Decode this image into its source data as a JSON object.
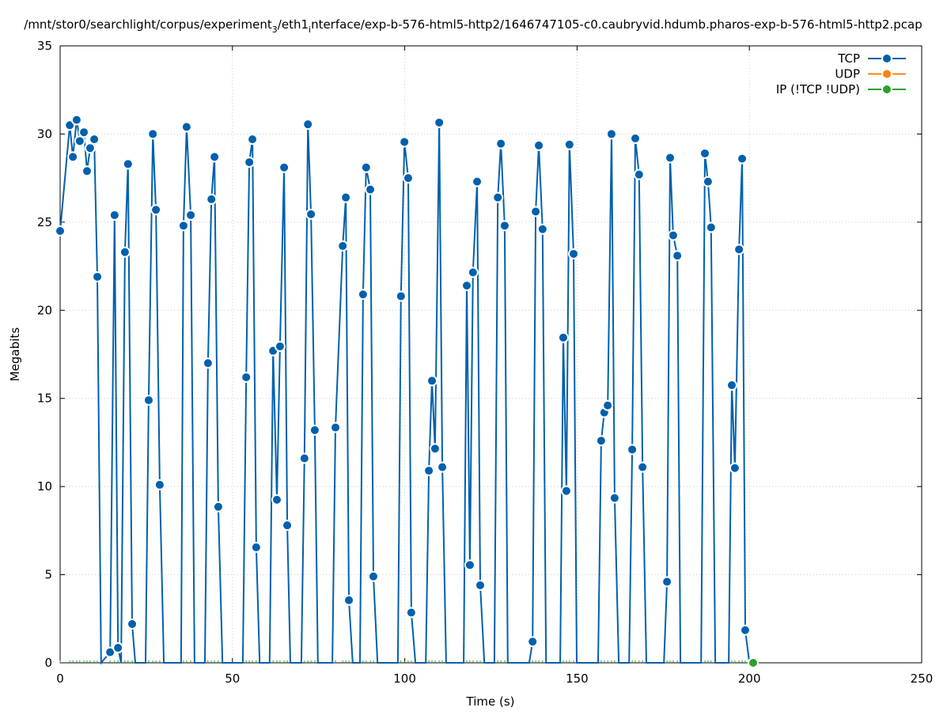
{
  "chart_data": {
    "type": "line",
    "title": "/mnt/stor0/searchlight/corpus/experiment_3/eth1_interface/exp-b-576-html5-http2/1646747105-c0.caubryvid.hdumb.pharos-exp-b-576-html5-http2.pcap",
    "title_main": "/mnt/stor0/searchlight/corpus/experiment",
    "title_sub1": "3",
    "title_mid": "/eth1",
    "title_sub2": "i",
    "title_end": "nterface/exp-b-576-html5-http2/1646747105-c0.caubryvid.hdumb.pharos-exp-b-576-html5-http2.pcap",
    "xlabel": "Time (s)",
    "ylabel": "Megabits",
    "xlim": [
      0,
      250
    ],
    "ylim": [
      0,
      35
    ],
    "xticks": [
      "0",
      "50",
      "100",
      "150",
      "200",
      "250"
    ],
    "yticks": [
      "0",
      "5",
      "10",
      "15",
      "20",
      "25",
      "30",
      "35"
    ],
    "grid": true,
    "legend_position": "top-right",
    "series": [
      {
        "name": "TCP",
        "color": "#0060ad",
        "points": [
          [
            0,
            24.5
          ],
          [
            2.8,
            30.5
          ],
          [
            3.7,
            28.7
          ],
          [
            4.8,
            30.8
          ],
          [
            5.7,
            29.6
          ],
          [
            6.9,
            30.1
          ],
          [
            7.8,
            27.9
          ],
          [
            8.7,
            29.2
          ],
          [
            9.9,
            29.7
          ],
          [
            10.8,
            21.9
          ],
          [
            11.9,
            0
          ],
          [
            14.5,
            0.6
          ],
          [
            15.8,
            25.4
          ],
          [
            16.8,
            0.85
          ],
          [
            17.7,
            0
          ],
          [
            18.8,
            23.3
          ],
          [
            19.7,
            28.3
          ],
          [
            20.9,
            2.2
          ],
          [
            21.8,
            0
          ],
          [
            24.8,
            0
          ],
          [
            25.7,
            14.9
          ],
          [
            26.9,
            30.0
          ],
          [
            27.8,
            25.7
          ],
          [
            28.9,
            10.1
          ],
          [
            30.1,
            0
          ],
          [
            35.1,
            0
          ],
          [
            35.8,
            24.8
          ],
          [
            36.7,
            30.4
          ],
          [
            37.9,
            25.4
          ],
          [
            39.0,
            0
          ],
          [
            42.0,
            0
          ],
          [
            42.9,
            17.0
          ],
          [
            43.9,
            26.3
          ],
          [
            44.8,
            28.7
          ],
          [
            45.9,
            8.85
          ],
          [
            47.1,
            0
          ],
          [
            53.0,
            0
          ],
          [
            54.0,
            16.2
          ],
          [
            54.9,
            28.4
          ],
          [
            55.8,
            29.7
          ],
          [
            56.9,
            6.55
          ],
          [
            57.9,
            0
          ],
          [
            60.8,
            0
          ],
          [
            61.8,
            17.7
          ],
          [
            62.9,
            9.25
          ],
          [
            63.8,
            17.95
          ],
          [
            65.0,
            28.1
          ],
          [
            65.9,
            7.8
          ],
          [
            66.8,
            0
          ],
          [
            70.0,
            0
          ],
          [
            70.9,
            11.6
          ],
          [
            71.9,
            30.55
          ],
          [
            72.8,
            25.45
          ],
          [
            73.9,
            13.2
          ],
          [
            74.8,
            0
          ],
          [
            79.0,
            0
          ],
          [
            79.9,
            13.35
          ],
          [
            82.0,
            23.65
          ],
          [
            82.9,
            26.4
          ],
          [
            83.8,
            3.55
          ],
          [
            84.9,
            0
          ],
          [
            87.0,
            0
          ],
          [
            87.9,
            20.9
          ],
          [
            88.8,
            28.1
          ],
          [
            90.0,
            26.85
          ],
          [
            90.9,
            4.9
          ],
          [
            92.1,
            0
          ],
          [
            98.0,
            0
          ],
          [
            98.9,
            20.8
          ],
          [
            99.9,
            29.55
          ],
          [
            101.0,
            27.5
          ],
          [
            101.9,
            2.85
          ],
          [
            103.1,
            0
          ],
          [
            106.1,
            0
          ],
          [
            107.0,
            10.9
          ],
          [
            107.9,
            16.0
          ],
          [
            108.8,
            12.15
          ],
          [
            110.0,
            30.65
          ],
          [
            110.9,
            11.1
          ],
          [
            112.0,
            0
          ],
          [
            117.1,
            0
          ],
          [
            118.0,
            21.4
          ],
          [
            118.9,
            5.55
          ],
          [
            119.8,
            22.15
          ],
          [
            121.0,
            27.3
          ],
          [
            121.9,
            4.4
          ],
          [
            123.1,
            0
          ],
          [
            126.0,
            0
          ],
          [
            127.0,
            26.4
          ],
          [
            127.9,
            29.45
          ],
          [
            129.0,
            24.8
          ],
          [
            129.9,
            0
          ],
          [
            136.1,
            0
          ],
          [
            137.1,
            1.2
          ],
          [
            138.0,
            25.6
          ],
          [
            138.9,
            29.35
          ],
          [
            140.0,
            24.6
          ],
          [
            141.0,
            0
          ],
          [
            145.1,
            0
          ],
          [
            146.0,
            18.45
          ],
          [
            146.9,
            9.75
          ],
          [
            147.8,
            29.4
          ],
          [
            149.0,
            23.2
          ],
          [
            149.9,
            0
          ],
          [
            156.1,
            0
          ],
          [
            157.0,
            12.6
          ],
          [
            157.9,
            14.2
          ],
          [
            158.9,
            14.6
          ],
          [
            160.0,
            30.0
          ],
          [
            160.9,
            9.35
          ],
          [
            162.1,
            0
          ],
          [
            165.1,
            0
          ],
          [
            166.0,
            12.1
          ],
          [
            166.9,
            29.75
          ],
          [
            168.0,
            27.7
          ],
          [
            169.0,
            11.1
          ],
          [
            170.1,
            0
          ],
          [
            175.2,
            0
          ],
          [
            176.1,
            4.6
          ],
          [
            177.0,
            28.65
          ],
          [
            177.9,
            24.25
          ],
          [
            179.1,
            23.1
          ],
          [
            180.0,
            0
          ],
          [
            186.0,
            0
          ],
          [
            187.1,
            28.9
          ],
          [
            188.0,
            27.3
          ],
          [
            188.9,
            24.7
          ],
          [
            190.1,
            0
          ],
          [
            194.0,
            0
          ],
          [
            194.9,
            15.75
          ],
          [
            195.8,
            11.05
          ],
          [
            197.0,
            23.45
          ],
          [
            197.9,
            28.6
          ],
          [
            198.8,
            1.85
          ],
          [
            200.0,
            0
          ]
        ]
      },
      {
        "name": "UDP",
        "color": "#ff7f0e",
        "points": []
      },
      {
        "name": "IP (!TCP  !UDP)",
        "color": "#2ca02c",
        "points": [
          [
            201.1,
            0
          ]
        ]
      }
    ]
  }
}
